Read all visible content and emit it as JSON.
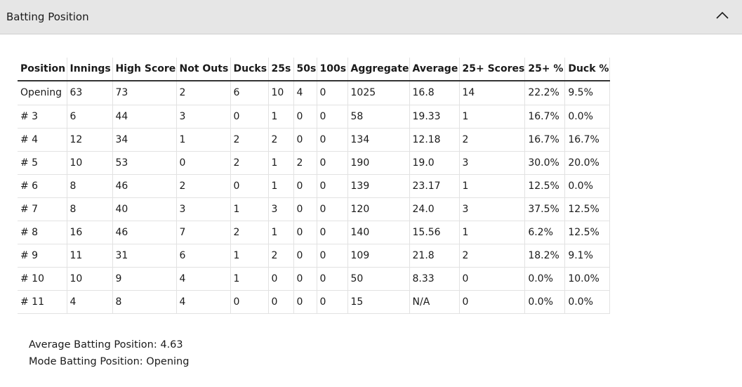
{
  "header": {
    "title": "Batting Position",
    "collapse_icon": "chevron-up-icon"
  },
  "table": {
    "columns": [
      "Position",
      "Innings",
      "High Score",
      "Not Outs",
      "Ducks",
      "25s",
      "50s",
      "100s",
      "Aggregate",
      "Average",
      "25+ Scores",
      "25+ %",
      "Duck %"
    ],
    "rows": [
      [
        "Opening",
        "63",
        "73",
        "2",
        "6",
        "10",
        "4",
        "0",
        "1025",
        "16.8",
        "14",
        "22.2%",
        "9.5%"
      ],
      [
        "# 3",
        "6",
        "44",
        "3",
        "0",
        "1",
        "0",
        "0",
        "58",
        "19.33",
        "1",
        "16.7%",
        "0.0%"
      ],
      [
        "# 4",
        "12",
        "34",
        "1",
        "2",
        "2",
        "0",
        "0",
        "134",
        "12.18",
        "2",
        "16.7%",
        "16.7%"
      ],
      [
        "# 5",
        "10",
        "53",
        "0",
        "2",
        "1",
        "2",
        "0",
        "190",
        "19.0",
        "3",
        "30.0%",
        "20.0%"
      ],
      [
        "# 6",
        "8",
        "46",
        "2",
        "0",
        "1",
        "0",
        "0",
        "139",
        "23.17",
        "1",
        "12.5%",
        "0.0%"
      ],
      [
        "# 7",
        "8",
        "40",
        "3",
        "1",
        "3",
        "0",
        "0",
        "120",
        "24.0",
        "3",
        "37.5%",
        "12.5%"
      ],
      [
        "# 8",
        "16",
        "46",
        "7",
        "2",
        "1",
        "0",
        "0",
        "140",
        "15.56",
        "1",
        "6.2%",
        "12.5%"
      ],
      [
        "# 9",
        "11",
        "31",
        "6",
        "1",
        "2",
        "0",
        "0",
        "109",
        "21.8",
        "2",
        "18.2%",
        "9.1%"
      ],
      [
        "# 10",
        "10",
        "9",
        "4",
        "1",
        "0",
        "0",
        "0",
        "50",
        "8.33",
        "0",
        "0.0%",
        "10.0%"
      ],
      [
        "# 11",
        "4",
        "8",
        "4",
        "0",
        "0",
        "0",
        "0",
        "15",
        "N/A",
        "0",
        "0.0%",
        "0.0%"
      ]
    ]
  },
  "summary": {
    "average_batting_position": "Average Batting Position: 4.63",
    "mode_batting_position": "Mode Batting Position: Opening"
  }
}
